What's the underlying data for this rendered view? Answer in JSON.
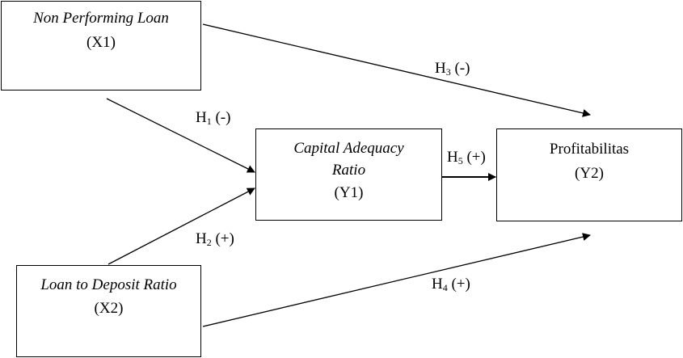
{
  "nodes": {
    "x1": {
      "name": "Non Performing Loan",
      "code": "(X1)"
    },
    "x2": {
      "name": "Loan to Deposit Ratio",
      "code": "(X2)"
    },
    "y1": {
      "name_line1": "Capital Adequacy",
      "name_line2": "Ratio",
      "code": "(Y1)"
    },
    "y2": {
      "name": "Profitabilitas",
      "code": "(Y2)"
    }
  },
  "hypotheses": {
    "h1": {
      "letter": "H",
      "sub": "1",
      "sign": "(-)"
    },
    "h2": {
      "letter": "H",
      "sub": "2",
      "sign": "(+)"
    },
    "h3": {
      "letter": "H",
      "sub": "3",
      "sign": "(-)"
    },
    "h4": {
      "letter": "H",
      "sub": "4",
      "sign": "(+)"
    },
    "h5": {
      "letter": "H",
      "sub": "5",
      "sign": "(+)"
    }
  }
}
